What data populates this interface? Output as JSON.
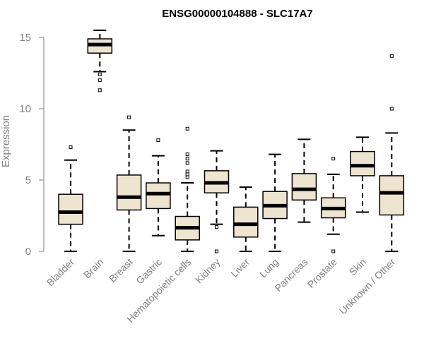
{
  "chart_data": {
    "type": "boxplot",
    "title": "ENSG00000104888 - SLC17A7",
    "xlabel": "",
    "ylabel": "Expression",
    "ylim": [
      0,
      15.5
    ],
    "yticks": [
      0,
      5,
      10,
      15
    ],
    "colors": {
      "box_fill": "#ede5cf",
      "box_stroke": "#000000",
      "axis": "#808080"
    },
    "categories": [
      "Bladder",
      "Brain",
      "Breast",
      "Gastric",
      "Hematopoietic cells",
      "Kidney",
      "Liver",
      "Lung",
      "Pancreas",
      "Prostate",
      "Skin",
      "Unknown / Other"
    ],
    "boxes": [
      {
        "name": "Bladder",
        "min": 0.0,
        "q1": 1.9,
        "median": 2.75,
        "q3": 4.0,
        "max": 6.4,
        "outliers": [
          7.3
        ]
      },
      {
        "name": "Brain",
        "min": 12.6,
        "q1": 13.9,
        "median": 14.5,
        "q3": 14.9,
        "max": 15.5,
        "outliers": [
          12.4,
          12.0,
          11.3
        ]
      },
      {
        "name": "Breast",
        "min": 0.0,
        "q1": 2.9,
        "median": 3.8,
        "q3": 5.35,
        "max": 8.5,
        "outliers": [
          9.4
        ]
      },
      {
        "name": "Gastric",
        "min": 1.1,
        "q1": 3.0,
        "median": 4.05,
        "q3": 4.8,
        "max": 6.7,
        "outliers": [
          7.8
        ]
      },
      {
        "name": "Hematopoietic cells",
        "min": 0.0,
        "q1": 0.8,
        "median": 1.65,
        "q3": 2.45,
        "max": 4.8,
        "outliers": [
          5.2,
          5.4,
          5.6,
          6.2,
          6.5,
          6.8,
          8.6
        ]
      },
      {
        "name": "Kidney",
        "min": 1.9,
        "q1": 4.1,
        "median": 4.8,
        "q3": 5.65,
        "max": 7.05,
        "outliers": [
          1.7,
          0.0
        ]
      },
      {
        "name": "Liver",
        "min": 0.0,
        "q1": 1.0,
        "median": 1.9,
        "q3": 3.1,
        "max": 4.5,
        "outliers": []
      },
      {
        "name": "Lung",
        "min": 0.0,
        "q1": 2.3,
        "median": 3.2,
        "q3": 4.2,
        "max": 6.8,
        "outliers": []
      },
      {
        "name": "Pancreas",
        "min": 2.05,
        "q1": 3.6,
        "median": 4.35,
        "q3": 5.45,
        "max": 7.85,
        "outliers": []
      },
      {
        "name": "Prostate",
        "min": 1.2,
        "q1": 2.35,
        "median": 3.0,
        "q3": 3.75,
        "max": 5.4,
        "outliers": [
          6.5,
          0.0
        ]
      },
      {
        "name": "Skin",
        "min": 2.75,
        "q1": 5.3,
        "median": 6.0,
        "q3": 7.0,
        "max": 8.0,
        "outliers": []
      },
      {
        "name": "Unknown / Other",
        "min": 0.0,
        "q1": 2.55,
        "median": 4.1,
        "q3": 5.3,
        "max": 8.3,
        "outliers": [
          10.0,
          13.7
        ]
      }
    ]
  }
}
